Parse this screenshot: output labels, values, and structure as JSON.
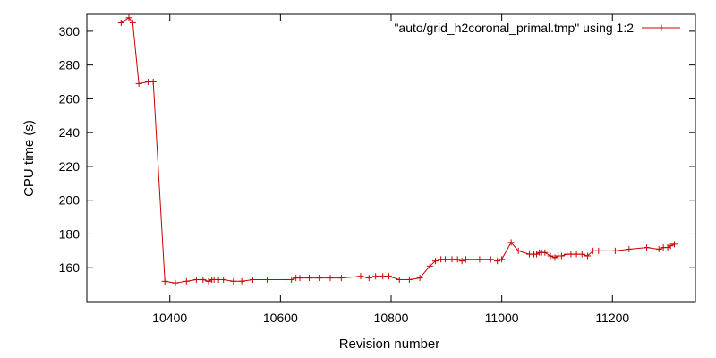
{
  "chart_data": {
    "type": "line",
    "title": "",
    "xlabel": "Revision number",
    "ylabel": "CPU time (s)",
    "xlim": [
      10250,
      11350
    ],
    "ylim": [
      140,
      310
    ],
    "xticks": [
      10400,
      10600,
      10800,
      11000,
      11200
    ],
    "yticks": [
      160,
      180,
      200,
      220,
      240,
      260,
      280,
      300
    ],
    "grid": false,
    "legend_position": "top-right",
    "series": [
      {
        "name": "\"auto/grid_h2coronal_primal.tmp\" using 1:2",
        "color": "#cc0000",
        "marker": "plus",
        "x": [
          10312,
          10326,
          10333,
          10344,
          10361,
          10370,
          10391,
          10410,
          10430,
          10448,
          10460,
          10470,
          10476,
          10480,
          10488,
          10497,
          10515,
          10530,
          10550,
          10576,
          10610,
          10620,
          10628,
          10635,
          10652,
          10670,
          10690,
          10710,
          10745,
          10760,
          10772,
          10785,
          10796,
          10815,
          10833,
          10852,
          10870,
          10880,
          10890,
          10898,
          10910,
          10920,
          10928,
          10935,
          10960,
          10980,
          10992,
          11000,
          11017,
          11030,
          11050,
          11058,
          11063,
          11068,
          11072,
          11078,
          11088,
          11096,
          11102,
          11108,
          11118,
          11125,
          11135,
          11145,
          11155,
          11165,
          11175,
          11205,
          11230,
          11262,
          11284,
          11292,
          11300,
          11305,
          11312
        ],
        "y": [
          305,
          308,
          305,
          269,
          270,
          270,
          152,
          151,
          152,
          153,
          153,
          152,
          153,
          153,
          153,
          153,
          152,
          152,
          153,
          153,
          153,
          153,
          154,
          154,
          154,
          154,
          154,
          154,
          155,
          154,
          155,
          155,
          155,
          153,
          153,
          154,
          161,
          164,
          165,
          165,
          165,
          165,
          164,
          165,
          165,
          165,
          164,
          165,
          175,
          170,
          168,
          168,
          168,
          169,
          169,
          169,
          167,
          166,
          167,
          167,
          168,
          168,
          168,
          168,
          167,
          170,
          170,
          170,
          171,
          172,
          171,
          172,
          172,
          173,
          174
        ]
      }
    ]
  }
}
